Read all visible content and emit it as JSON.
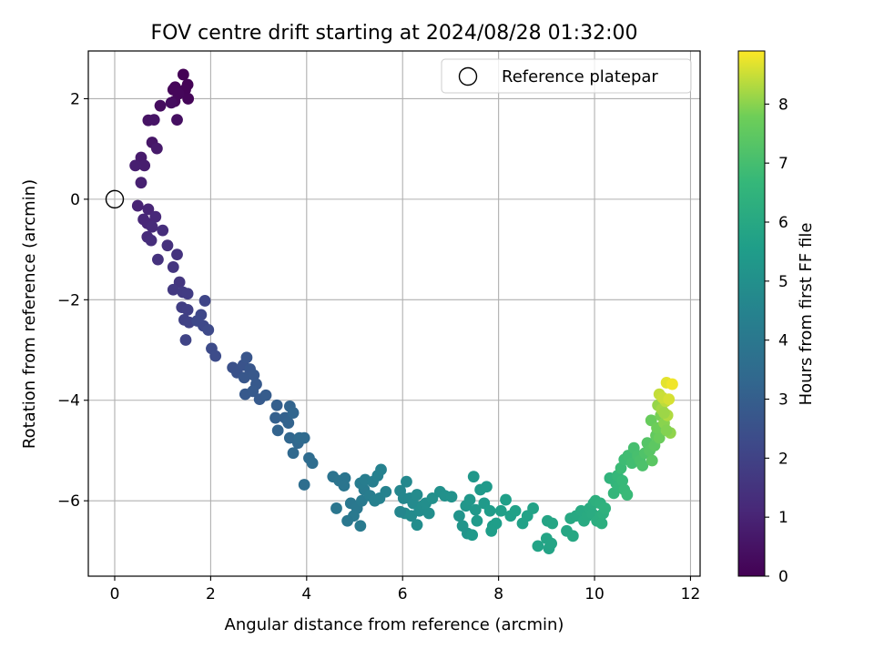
{
  "chart_data": {
    "type": "scatter",
    "title": "FOV centre drift starting at 2024/08/28 01:32:00",
    "xlabel": "Angular distance from reference (arcmin)",
    "ylabel": "Rotation from reference (arcmin)",
    "xlim": [
      -0.55,
      12.2
    ],
    "ylim": [
      -7.5,
      2.95
    ],
    "x_ticks": [
      0,
      2,
      4,
      6,
      8,
      10,
      12
    ],
    "y_ticks": [
      -6,
      -4,
      -2,
      0,
      2
    ],
    "grid": true,
    "legend": {
      "placement": "top-right",
      "entries": [
        "Reference platepar"
      ]
    },
    "reference_point": {
      "x": 0,
      "y": 0,
      "label": "Reference platepar"
    },
    "colorbar": {
      "label": "Hours from first FF file",
      "range": [
        0,
        8.9
      ],
      "ticks": [
        0,
        1,
        2,
        3,
        4,
        5,
        6,
        7,
        8
      ],
      "colormap": "viridis"
    },
    "points": [
      [
        1.43,
        2.48,
        0.02
      ],
      [
        1.52,
        2.28,
        0.05
      ],
      [
        1.47,
        2.18,
        0.08
      ],
      [
        1.26,
        2.23,
        0.1
      ],
      [
        1.53,
        2.0,
        0.12
      ],
      [
        1.22,
        2.18,
        0.15
      ],
      [
        1.33,
        2.1,
        0.18
      ],
      [
        1.25,
        1.95,
        0.2
      ],
      [
        0.95,
        1.86,
        0.3
      ],
      [
        1.18,
        1.92,
        0.35
      ],
      [
        1.3,
        1.58,
        0.4
      ],
      [
        0.7,
        1.57,
        0.5
      ],
      [
        0.82,
        1.58,
        0.55
      ],
      [
        0.78,
        1.13,
        0.6
      ],
      [
        0.88,
        1.01,
        0.7
      ],
      [
        0.55,
        0.83,
        0.75
      ],
      [
        0.62,
        0.67,
        0.8
      ],
      [
        0.43,
        0.67,
        0.85
      ],
      [
        0.55,
        0.33,
        0.9
      ],
      [
        0.48,
        -0.13,
        1.0
      ],
      [
        0.7,
        -0.2,
        1.05
      ],
      [
        0.6,
        -0.4,
        1.1
      ],
      [
        0.68,
        -0.48,
        1.12
      ],
      [
        0.85,
        -0.35,
        1.15
      ],
      [
        0.78,
        -0.55,
        1.2
      ],
      [
        0.68,
        -0.75,
        1.25
      ],
      [
        1.0,
        -0.62,
        1.3
      ],
      [
        0.76,
        -0.82,
        1.3
      ],
      [
        1.1,
        -0.92,
        1.4
      ],
      [
        0.9,
        -1.2,
        1.45
      ],
      [
        1.3,
        -1.1,
        1.5
      ],
      [
        1.22,
        -1.35,
        1.55
      ],
      [
        1.35,
        -1.65,
        1.6
      ],
      [
        1.22,
        -1.8,
        1.7
      ],
      [
        1.42,
        -1.85,
        1.75
      ],
      [
        1.52,
        -1.88,
        1.8
      ],
      [
        1.4,
        -2.15,
        1.85
      ],
      [
        1.52,
        -2.2,
        1.9
      ],
      [
        1.45,
        -2.4,
        1.95
      ],
      [
        1.55,
        -2.45,
        2.0
      ],
      [
        1.48,
        -2.8,
        2.05
      ],
      [
        1.88,
        -2.02,
        2.1
      ],
      [
        1.8,
        -2.3,
        2.15
      ],
      [
        1.85,
        -2.52,
        2.2
      ],
      [
        1.95,
        -2.6,
        2.25
      ],
      [
        1.72,
        -2.42,
        2.2
      ],
      [
        2.02,
        -2.97,
        2.3
      ],
      [
        2.1,
        -3.12,
        2.35
      ],
      [
        2.46,
        -3.35,
        2.5
      ],
      [
        2.55,
        -3.45,
        2.55
      ],
      [
        2.68,
        -3.3,
        2.6
      ],
      [
        2.75,
        -3.15,
        2.65
      ],
      [
        2.82,
        -3.38,
        2.7
      ],
      [
        2.7,
        -3.55,
        2.72
      ],
      [
        2.9,
        -3.5,
        2.75
      ],
      [
        2.95,
        -3.68,
        2.8
      ],
      [
        2.72,
        -3.88,
        2.8
      ],
      [
        3.02,
        -3.98,
        2.85
      ],
      [
        2.88,
        -3.82,
        2.85
      ],
      [
        3.15,
        -3.9,
        2.9
      ],
      [
        3.38,
        -4.1,
        3.0
      ],
      [
        3.35,
        -4.35,
        3.05
      ],
      [
        3.55,
        -4.35,
        3.1
      ],
      [
        3.62,
        -4.45,
        3.15
      ],
      [
        3.4,
        -4.6,
        3.15
      ],
      [
        3.65,
        -4.12,
        3.2
      ],
      [
        3.72,
        -4.25,
        3.25
      ],
      [
        3.65,
        -4.75,
        3.3
      ],
      [
        3.82,
        -4.85,
        3.35
      ],
      [
        3.72,
        -5.05,
        3.4
      ],
      [
        3.85,
        -4.75,
        3.45
      ],
      [
        3.95,
        -4.75,
        3.45
      ],
      [
        4.05,
        -5.15,
        3.5
      ],
      [
        4.12,
        -5.25,
        3.55
      ],
      [
        3.95,
        -5.68,
        3.6
      ],
      [
        4.55,
        -5.52,
        3.8
      ],
      [
        4.68,
        -5.6,
        3.85
      ],
      [
        4.8,
        -5.55,
        3.9
      ],
      [
        4.78,
        -5.7,
        3.9
      ],
      [
        4.62,
        -6.15,
        3.95
      ],
      [
        4.92,
        -6.05,
        4.0
      ],
      [
        5.05,
        -6.15,
        4.02
      ],
      [
        4.98,
        -6.3,
        4.05
      ],
      [
        5.15,
        -6.0,
        4.1
      ],
      [
        5.2,
        -5.78,
        4.15
      ],
      [
        5.12,
        -5.65,
        4.2
      ],
      [
        5.22,
        -5.58,
        4.25
      ],
      [
        5.32,
        -5.9,
        4.25
      ],
      [
        5.38,
        -5.62,
        4.3
      ],
      [
        5.48,
        -5.5,
        4.35
      ],
      [
        5.55,
        -5.38,
        4.4
      ],
      [
        5.42,
        -6.0,
        4.35
      ],
      [
        5.52,
        -5.95,
        4.4
      ],
      [
        5.65,
        -5.82,
        4.45
      ],
      [
        5.12,
        -6.5,
        4.1
      ],
      [
        4.85,
        -6.4,
        4.0
      ],
      [
        5.95,
        -5.8,
        4.6
      ],
      [
        6.02,
        -5.95,
        4.65
      ],
      [
        6.08,
        -5.62,
        4.7
      ],
      [
        6.15,
        -5.95,
        4.7
      ],
      [
        6.22,
        -6.05,
        4.75
      ],
      [
        6.3,
        -5.88,
        4.8
      ],
      [
        6.18,
        -6.3,
        4.8
      ],
      [
        6.05,
        -6.25,
        4.82
      ],
      [
        6.35,
        -6.2,
        4.85
      ],
      [
        6.42,
        -6.1,
        4.9
      ],
      [
        6.55,
        -6.25,
        4.92
      ],
      [
        6.48,
        -6.05,
        4.92
      ],
      [
        5.95,
        -6.22,
        4.6
      ],
      [
        6.3,
        -6.48,
        4.88
      ],
      [
        6.62,
        -5.95,
        5.0
      ],
      [
        6.78,
        -5.82,
        5.02
      ],
      [
        6.88,
        -5.9,
        5.05
      ],
      [
        7.02,
        -5.92,
        5.1
      ],
      [
        7.18,
        -6.3,
        5.15
      ],
      [
        7.25,
        -6.5,
        5.2
      ],
      [
        7.35,
        -6.65,
        5.22
      ],
      [
        7.32,
        -6.1,
        5.25
      ],
      [
        7.4,
        -5.98,
        5.3
      ],
      [
        7.48,
        -5.52,
        5.3
      ],
      [
        7.52,
        -6.18,
        5.32
      ],
      [
        7.45,
        -6.68,
        5.35
      ],
      [
        7.62,
        -5.78,
        5.38
      ],
      [
        7.75,
        -5.72,
        5.4
      ],
      [
        7.7,
        -6.05,
        5.42
      ],
      [
        7.55,
        -6.4,
        5.4
      ],
      [
        7.82,
        -6.2,
        5.5
      ],
      [
        7.88,
        -6.5,
        5.52
      ],
      [
        7.95,
        -6.45,
        5.55
      ],
      [
        7.85,
        -6.6,
        5.55
      ],
      [
        8.05,
        -6.2,
        5.6
      ],
      [
        8.15,
        -5.98,
        5.62
      ],
      [
        8.25,
        -6.3,
        5.65
      ],
      [
        8.35,
        -6.2,
        5.68
      ],
      [
        8.5,
        -6.45,
        5.7
      ],
      [
        8.6,
        -6.3,
        5.72
      ],
      [
        8.72,
        -6.15,
        5.75
      ],
      [
        8.82,
        -6.9,
        5.78
      ],
      [
        9.05,
        -6.95,
        5.8
      ],
      [
        9.0,
        -6.75,
        5.82
      ],
      [
        9.1,
        -6.85,
        5.85
      ],
      [
        9.02,
        -6.4,
        5.85
      ],
      [
        9.12,
        -6.45,
        5.88
      ],
      [
        9.42,
        -6.6,
        5.92
      ],
      [
        9.55,
        -6.7,
        5.95
      ],
      [
        9.5,
        -6.35,
        6.0
      ],
      [
        9.62,
        -6.3,
        6.02
      ],
      [
        9.72,
        -6.2,
        6.05
      ],
      [
        9.78,
        -6.4,
        6.08
      ],
      [
        9.85,
        -6.3,
        6.1
      ],
      [
        9.9,
        -6.15,
        6.12
      ],
      [
        9.95,
        -6.25,
        6.15
      ],
      [
        9.98,
        -6.05,
        6.2
      ],
      [
        10.05,
        -6.4,
        6.22
      ],
      [
        10.12,
        -6.3,
        6.25
      ],
      [
        10.15,
        -6.45,
        6.28
      ],
      [
        10.02,
        -6.0,
        6.3
      ],
      [
        10.18,
        -6.25,
        6.32
      ],
      [
        10.12,
        -6.05,
        6.35
      ],
      [
        10.22,
        -6.15,
        6.4
      ],
      [
        10.32,
        -5.55,
        6.5
      ],
      [
        10.45,
        -5.65,
        6.55
      ],
      [
        10.4,
        -5.85,
        6.6
      ],
      [
        10.5,
        -5.72,
        6.62
      ],
      [
        10.48,
        -5.5,
        6.65
      ],
      [
        10.58,
        -5.6,
        6.7
      ],
      [
        10.62,
        -5.78,
        6.72
      ],
      [
        10.68,
        -5.88,
        6.75
      ],
      [
        10.55,
        -5.35,
        6.8
      ],
      [
        10.62,
        -5.18,
        6.85
      ],
      [
        10.7,
        -5.1,
        6.9
      ],
      [
        10.78,
        -5.25,
        6.95
      ],
      [
        10.82,
        -4.95,
        7.0
      ],
      [
        10.9,
        -5.1,
        7.05
      ],
      [
        10.95,
        -5.2,
        7.1
      ],
      [
        11.0,
        -5.3,
        7.15
      ],
      [
        11.05,
        -5.05,
        7.2
      ],
      [
        11.1,
        -4.85,
        7.3
      ],
      [
        11.15,
        -5.0,
        7.35
      ],
      [
        11.2,
        -5.2,
        7.4
      ],
      [
        11.25,
        -4.9,
        7.45
      ],
      [
        11.28,
        -4.7,
        7.55
      ],
      [
        11.18,
        -4.4,
        7.65
      ],
      [
        11.35,
        -4.75,
        7.7
      ],
      [
        11.3,
        -4.55,
        7.75
      ],
      [
        11.38,
        -4.3,
        7.85
      ],
      [
        11.45,
        -4.45,
        8.0
      ],
      [
        11.32,
        -4.1,
        8.1
      ],
      [
        11.4,
        -4.18,
        8.2
      ],
      [
        11.52,
        -4.3,
        8.3
      ],
      [
        11.48,
        -4.02,
        8.4
      ],
      [
        11.35,
        -3.88,
        8.45
      ],
      [
        11.42,
        -3.95,
        8.5
      ],
      [
        11.55,
        -3.98,
        8.6
      ],
      [
        11.5,
        -3.65,
        8.7
      ],
      [
        11.62,
        -3.68,
        8.8
      ],
      [
        11.58,
        -4.65,
        8.05
      ],
      [
        11.5,
        -4.6,
        7.95
      ],
      [
        11.45,
        -4.25,
        8.15
      ]
    ]
  }
}
